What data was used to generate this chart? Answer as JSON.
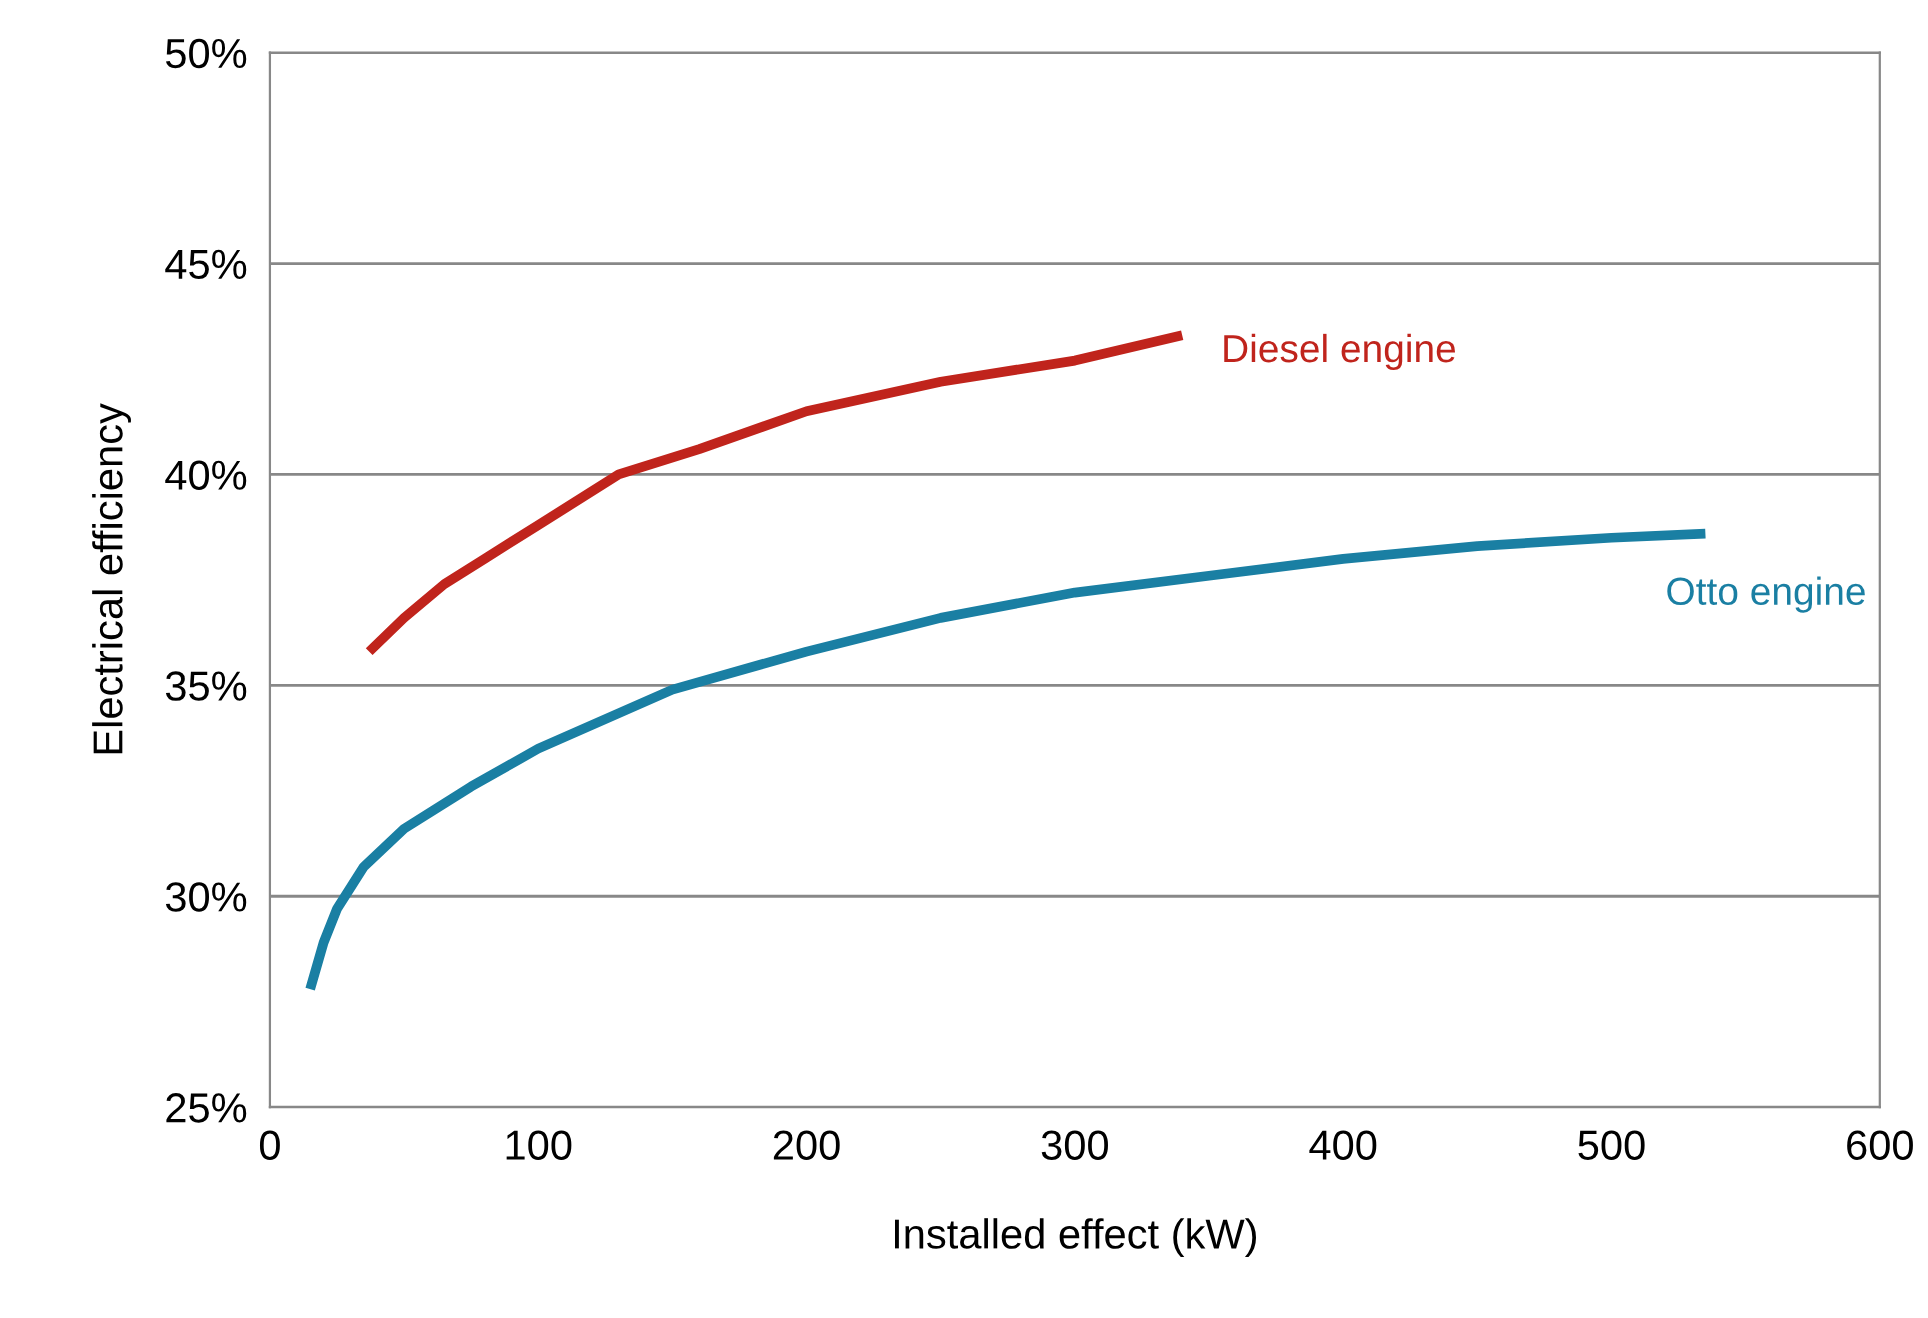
{
  "chart_data": {
    "type": "line",
    "xlabel": "Installed effect (kW)",
    "ylabel": "Electrical efficiency",
    "xlim": [
      0,
      600
    ],
    "xticks": [
      0,
      100,
      200,
      300,
      400,
      500,
      600
    ],
    "ylim": [
      25,
      50
    ],
    "yticks": [
      {
        "value": 25,
        "label": "25%"
      },
      {
        "value": 30,
        "label": "30%"
      },
      {
        "value": 35,
        "label": "35%"
      },
      {
        "value": 40,
        "label": "40%"
      },
      {
        "value": 45,
        "label": "45%"
      },
      {
        "value": 50,
        "label": "50%"
      }
    ],
    "grid": "y",
    "marker": "none",
    "line_style": "solid",
    "legend": false,
    "series": [
      {
        "name": "Diesel engine",
        "color": "#c0241c",
        "x": [
          37,
          50,
          65,
          80,
          100,
          130,
          160,
          200,
          250,
          300,
          340
        ],
        "values": [
          35.8,
          36.6,
          37.4,
          38.0,
          38.8,
          40.0,
          40.6,
          41.5,
          42.2,
          42.7,
          43.3
        ]
      },
      {
        "name": "Otto engine",
        "color": "#1a7fa3",
        "x": [
          15,
          20,
          25,
          35,
          50,
          75,
          100,
          150,
          200,
          250,
          300,
          350,
          400,
          450,
          500,
          535
        ],
        "values": [
          27.8,
          28.9,
          29.7,
          30.7,
          31.6,
          32.6,
          33.5,
          34.9,
          35.8,
          36.6,
          37.2,
          37.6,
          38.0,
          38.3,
          38.5,
          38.6
        ]
      }
    ]
  }
}
